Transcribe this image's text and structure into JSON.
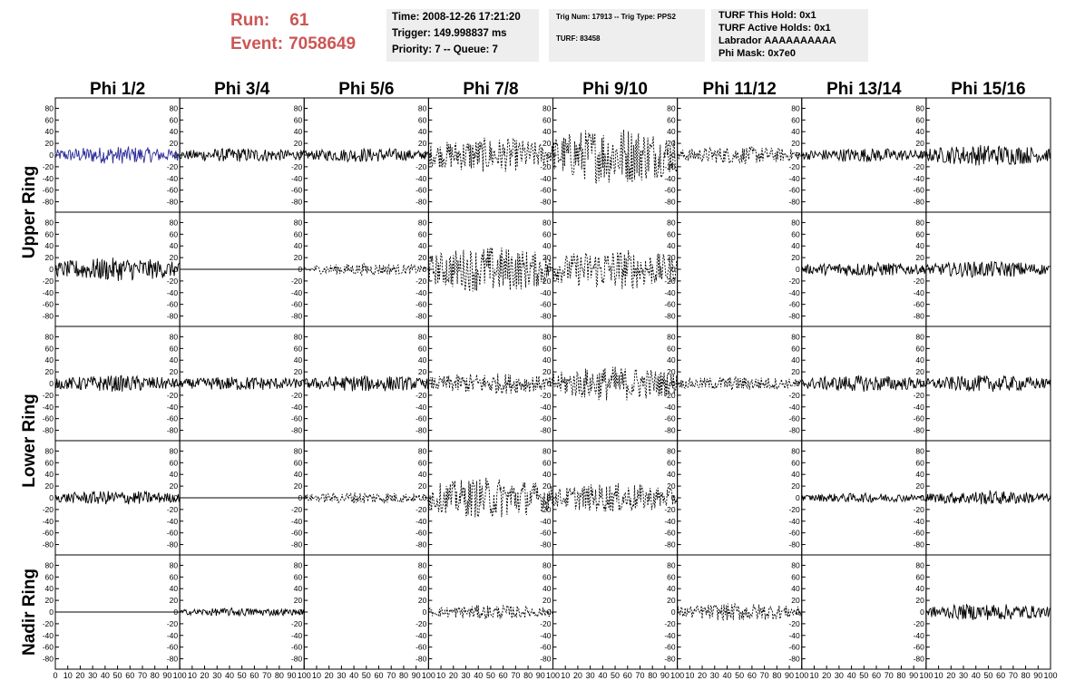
{
  "header": {
    "run_label": "Run:",
    "run_value": "61",
    "event_label": "Event:",
    "event_value": "7058649"
  },
  "info_time": {
    "time": "Time: 2008-12-26 17:21:20",
    "trigger": "Trigger: 149.998837 ms",
    "priority": "Priority: 7 -- Queue: 7"
  },
  "info_trig": {
    "trig": "Trig Num: 17913 -- Trig Type: PPS2",
    "turf": "TURF: 83458"
  },
  "info_turf": {
    "hold": "TURF This Hold: 0x1",
    "active": "TURF Active Holds: 0x1",
    "labrador": "Labrador AAAAAAAAAA",
    "phimask": "Phi Mask: 0x7e0"
  },
  "chart_data": {
    "type": "line",
    "columns": [
      "Phi 1/2",
      "Phi 3/4",
      "Phi 5/6",
      "Phi 7/8",
      "Phi 9/10",
      "Phi 11/12",
      "Phi 13/14",
      "Phi 15/16"
    ],
    "ring_labels": [
      "Upper Ring",
      "Lower Ring",
      "Nadir Ring"
    ],
    "ylim": [
      -90,
      90
    ],
    "yticks": [
      80,
      60,
      40,
      20,
      0,
      -20,
      -40,
      -60,
      -80
    ],
    "xlim": [
      0,
      100
    ],
    "xticks": [
      0,
      10,
      20,
      30,
      40,
      50,
      60,
      70,
      80,
      90,
      100
    ],
    "colors": {
      "highlight": "#2a2a9a",
      "trace": "#000000",
      "header_red": "#cc5555"
    },
    "panels": [
      [
        {
          "amp": 15,
          "style": "solid",
          "color": "blue"
        },
        {
          "amp": 12,
          "style": "solid"
        },
        {
          "amp": 12,
          "style": "solid"
        },
        {
          "amp": 30,
          "style": "dashed"
        },
        {
          "amp": 50,
          "style": "dashed"
        },
        {
          "amp": 15,
          "style": "dashed"
        },
        {
          "amp": 12,
          "style": "solid"
        },
        {
          "amp": 18,
          "style": "solid"
        }
      ],
      [
        {
          "amp": 20,
          "style": "solid"
        },
        {
          "amp": 0,
          "style": "flat"
        },
        {
          "amp": 10,
          "style": "dashed"
        },
        {
          "amp": 40,
          "style": "dashed"
        },
        {
          "amp": 35,
          "style": "dashed"
        },
        {
          "amp": 0,
          "style": "none"
        },
        {
          "amp": 12,
          "style": "solid"
        },
        {
          "amp": 14,
          "style": "solid"
        }
      ],
      [
        {
          "amp": 14,
          "style": "solid"
        },
        {
          "amp": 12,
          "style": "solid"
        },
        {
          "amp": 14,
          "style": "solid"
        },
        {
          "amp": 18,
          "style": "dashed"
        },
        {
          "amp": 30,
          "style": "dashed"
        },
        {
          "amp": 12,
          "style": "dashed"
        },
        {
          "amp": 14,
          "style": "solid"
        },
        {
          "amp": 14,
          "style": "solid"
        }
      ],
      [
        {
          "amp": 12,
          "style": "solid"
        },
        {
          "amp": 0,
          "style": "flat"
        },
        {
          "amp": 10,
          "style": "dashed"
        },
        {
          "amp": 35,
          "style": "dashed"
        },
        {
          "amp": 25,
          "style": "dashed"
        },
        {
          "amp": 0,
          "style": "none"
        },
        {
          "amp": 8,
          "style": "solid"
        },
        {
          "amp": 12,
          "style": "solid"
        }
      ],
      [
        {
          "amp": 0,
          "style": "flat"
        },
        {
          "amp": 7,
          "style": "solid"
        },
        {
          "amp": 0,
          "style": "none"
        },
        {
          "amp": 12,
          "style": "dashed"
        },
        {
          "amp": 0,
          "style": "none"
        },
        {
          "amp": 15,
          "style": "dashed"
        },
        {
          "amp": 0,
          "style": "none"
        },
        {
          "amp": 14,
          "style": "solid"
        }
      ]
    ]
  }
}
